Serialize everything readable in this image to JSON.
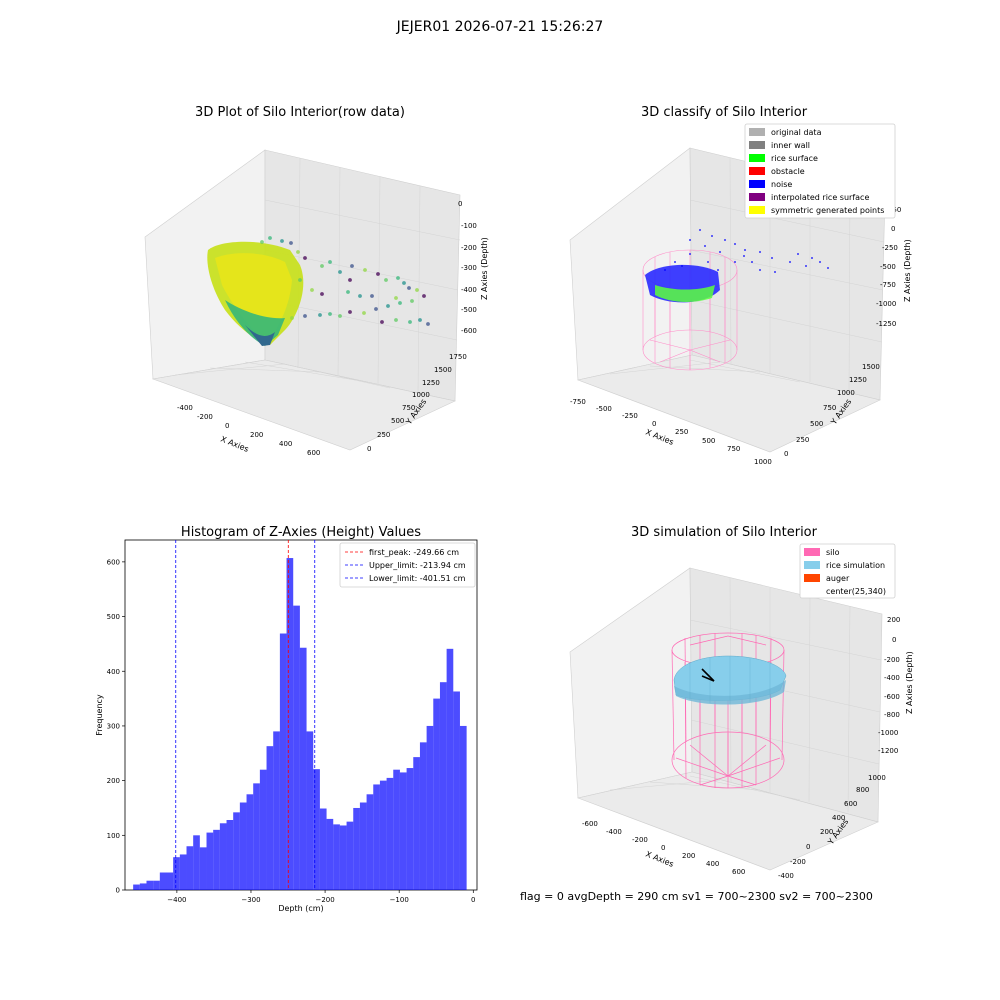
{
  "suptitle": "JEJER01 2026-07-21 15:26:27",
  "panels": {
    "raw": {
      "title": "3D Plot of Silo Interior(row data)",
      "xlabel": "X Axies",
      "ylabel": "Y Axies",
      "zlabel": "Z Axies (Depth)",
      "xticks": [
        "-400",
        "-200",
        "0",
        "200",
        "400",
        "600"
      ],
      "yticks": [
        "0",
        "250",
        "500",
        "750",
        "1000",
        "1250",
        "1500",
        "1750"
      ],
      "zticks": [
        "0",
        "-100",
        "-200",
        "-300",
        "-400",
        "-500",
        "-600"
      ]
    },
    "classify": {
      "title": "3D classify of Silo Interior",
      "xlabel": "X Axies",
      "ylabel": "Y Axies",
      "zlabel": "Z Axies (Depth)",
      "xticks": [
        "-750",
        "-500",
        "-250",
        "0",
        "250",
        "500",
        "750",
        "1000"
      ],
      "yticks": [
        "0",
        "250",
        "500",
        "750",
        "1000",
        "1250",
        "1500"
      ],
      "zticks": [
        "250",
        "0",
        "-250",
        "-500",
        "-750",
        "-1000",
        "-1250"
      ],
      "legend": [
        {
          "label": "original data",
          "color": "#b0b0b0"
        },
        {
          "label": "inner wall",
          "color": "#808080"
        },
        {
          "label": "rice surface",
          "color": "#00ff00"
        },
        {
          "label": "obstacle",
          "color": "#ff0000"
        },
        {
          "label": "noise",
          "color": "#0000ff"
        },
        {
          "label": "interpolated rice surface",
          "color": "#800080"
        },
        {
          "label": "symmetric generated points",
          "color": "#ffff00"
        }
      ]
    },
    "simulation": {
      "title": "3D simulation of Silo Interior",
      "xlabel": "X Axies",
      "ylabel": "Y Axies",
      "zlabel": "Z Axies (Depth)",
      "xticks": [
        "-600",
        "-400",
        "-200",
        "0",
        "200",
        "400",
        "600"
      ],
      "yticks": [
        "-400",
        "-200",
        "0",
        "200",
        "400",
        "600",
        "800",
        "1000"
      ],
      "zticks": [
        "200",
        "0",
        "-200",
        "-400",
        "-600",
        "-800",
        "-1000",
        "-1200"
      ],
      "legend": [
        {
          "label": "silo",
          "color": "#ff69b4"
        },
        {
          "label": "rice simulation",
          "color": "#87ceeb"
        },
        {
          "label": "auger",
          "color": "#ff4500"
        },
        {
          "label": "center(25,340)",
          "color": ""
        }
      ]
    }
  },
  "status_line": "flag = 0     avgDepth = 290 cm  sv1 = 700~2300  sv2 = 700~2300",
  "chart_data": {
    "type": "bar",
    "title": "Histogram of Z-Axies (Height) Values",
    "xlabel": "Depth (cm)",
    "ylabel": "Frequency",
    "xlim": [
      -470,
      5
    ],
    "ylim": [
      0,
      640
    ],
    "xticks": [
      -400,
      -300,
      -200,
      -100,
      0
    ],
    "yticks": [
      0,
      100,
      200,
      300,
      400,
      500,
      600
    ],
    "bin_width": 9,
    "x": [
      -459,
      -450,
      -441,
      -432,
      -423,
      -414,
      -405,
      -396,
      -387,
      -378,
      -369,
      -360,
      -351,
      -342,
      -333,
      -324,
      -315,
      -306,
      -297,
      -288,
      -279,
      -270,
      -261,
      -252,
      -243,
      -234,
      -225,
      -216,
      -207,
      -198,
      -189,
      -180,
      -171,
      -162,
      -153,
      -144,
      -135,
      -126,
      -117,
      -108,
      -99,
      -90,
      -81,
      -72,
      -63,
      -54,
      -45,
      -36,
      -27,
      -18
    ],
    "values": [
      10,
      12,
      17,
      17,
      32,
      32,
      60,
      65,
      80,
      100,
      78,
      105,
      110,
      122,
      128,
      142,
      160,
      175,
      195,
      220,
      263,
      290,
      469,
      607,
      520,
      443,
      290,
      221,
      149,
      130,
      120,
      118,
      125,
      150,
      160,
      175,
      193,
      200,
      205,
      220,
      215,
      223,
      243,
      270,
      300,
      350,
      380,
      441,
      363,
      300
    ],
    "bar_color": "#0000ff",
    "lines": [
      {
        "label": "first_peak: -249.66 cm",
        "x": -249.66,
        "color": "#ff0000"
      },
      {
        "label": "Upper_limit: -213.94 cm",
        "x": -213.94,
        "color": "#0000ff"
      },
      {
        "label": "Lower_limit: -401.51 cm",
        "x": -401.51,
        "color": "#0000ff"
      }
    ]
  }
}
